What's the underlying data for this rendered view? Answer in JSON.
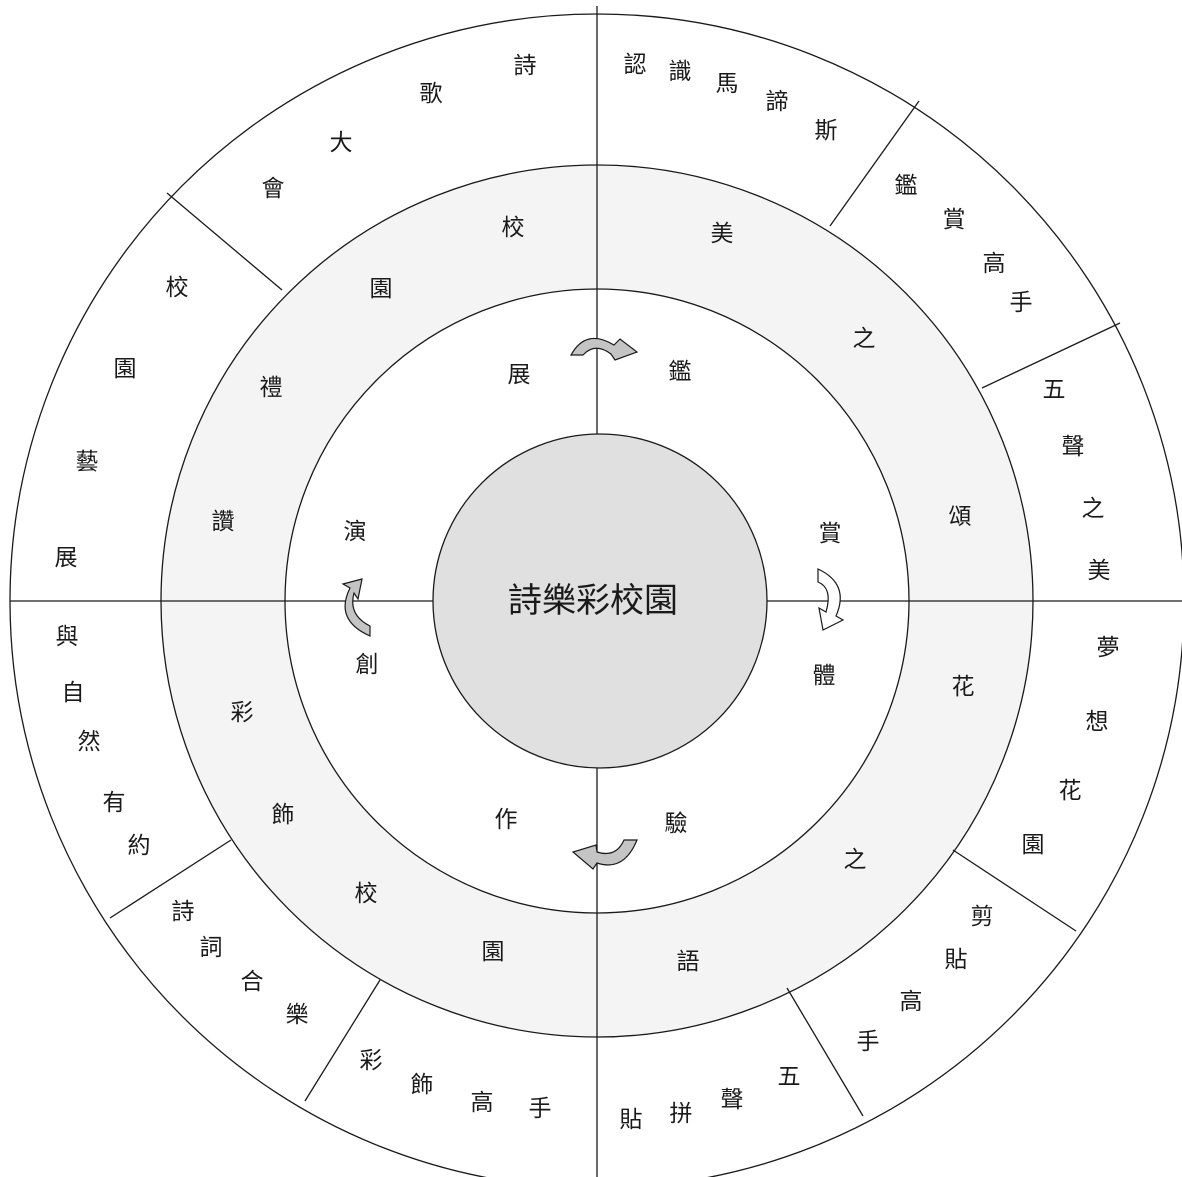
{
  "center": {
    "title": "詩樂彩校園"
  },
  "inner_ring": {
    "top_left": [
      "展"
    ],
    "top_right": [
      "鑑"
    ],
    "right_top": [
      "賞"
    ],
    "right_bottom": [
      "體"
    ],
    "bottom_right": [
      "驗"
    ],
    "bottom_left": [
      "作"
    ],
    "left_bottom": [
      "創"
    ],
    "left_top": [
      "演"
    ]
  },
  "middle_ring": {
    "q1": [
      "美",
      "之",
      "頌"
    ],
    "q2": [
      "花",
      "之",
      "語"
    ],
    "q3": [
      "彩",
      "飾",
      "校",
      "園"
    ],
    "q4": [
      "校",
      "園",
      "禮",
      "讚"
    ]
  },
  "outer_ring": {
    "s1": [
      "認",
      "識",
      "馬",
      "諦",
      "斯"
    ],
    "s2": [
      "鑑",
      "賞",
      "高",
      "手"
    ],
    "s3": [
      "五",
      "聲",
      "之",
      "美"
    ],
    "s4": [
      "夢",
      "想",
      "花",
      "園"
    ],
    "s5": [
      "剪",
      "貼",
      "高",
      "手"
    ],
    "s6": [
      "五",
      "聲",
      "拼",
      "貼"
    ],
    "s7": [
      "彩",
      "飾",
      "高",
      "手"
    ],
    "s8": [
      "詩",
      "詞",
      "合",
      "樂"
    ],
    "s9": [
      "與",
      "自",
      "然",
      "有",
      "約"
    ],
    "s10": [
      "校",
      "園",
      "藝",
      "展"
    ],
    "s11": [
      "詩",
      "歌",
      "大",
      "會"
    ]
  },
  "colors": {
    "center_fill": "#e0e0e0",
    "middle_ring_fill": "#f4f4f4",
    "stroke": "#1a1a1a",
    "background": "#ffffff"
  }
}
